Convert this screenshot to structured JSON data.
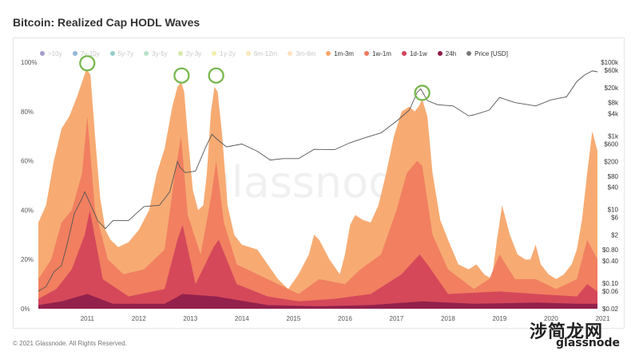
{
  "chart_data": {
    "type": "area",
    "title": "Bitcoin: Realized Cap HODL Waves",
    "xlabel": "",
    "ylabel": "",
    "y_left_ticks": [
      "0%",
      "20%",
      "40%",
      "60%",
      "80%",
      "100%"
    ],
    "y_left_range": [
      0,
      100
    ],
    "y_right_ticks": [
      "$0.02",
      "$0.06",
      "$0.10",
      "$0.40",
      "$0.80",
      "$2",
      "$6",
      "$10",
      "$40",
      "$80",
      "$200",
      "$600",
      "$1k",
      "$4k",
      "$8k",
      "$20k",
      "$60k",
      "$100k"
    ],
    "y_right_range": [
      0.02,
      100000
    ],
    "x_ticks": [
      "2011",
      "2012",
      "2013",
      "2014",
      "2015",
      "2016",
      "2017",
      "2018",
      "2019",
      "2020",
      "2021"
    ],
    "x_range": [
      2010.55,
      2021.4
    ],
    "legend": [
      {
        "label": ">10y",
        "color": "#5b4aa3",
        "active": false
      },
      {
        "label": "7y-10y",
        "color": "#3a78b5",
        "active": false
      },
      {
        "label": "5y-7y",
        "color": "#3aa39a",
        "active": false
      },
      {
        "label": "3y-5y",
        "color": "#7dcb9b",
        "active": false
      },
      {
        "label": "2y-3y",
        "color": "#b7d96b",
        "active": false
      },
      {
        "label": "1y-2y",
        "color": "#e8e46a",
        "active": false
      },
      {
        "label": "6m-12m",
        "color": "#f6d782",
        "active": false
      },
      {
        "label": "3m-6m",
        "color": "#f9c88a",
        "active": false
      },
      {
        "label": "1m-3m",
        "color": "#f7a66c",
        "active": true
      },
      {
        "label": "1w-1m",
        "color": "#ef7a5e",
        "active": true
      },
      {
        "label": "1d-1w",
        "color": "#d2435a",
        "active": true
      },
      {
        "label": "24h",
        "color": "#8c1d4a",
        "active": true
      },
      {
        "label": "Price [USD]",
        "color": "#7a7a7a",
        "active": true
      }
    ],
    "series": [
      {
        "name": "1m-3m",
        "color": "#f7a66c",
        "x": [
          2010.55,
          2010.7,
          2010.85,
          2011.0,
          2011.15,
          2011.3,
          2011.4,
          2011.48,
          2011.56,
          2011.65,
          2011.75,
          2011.85,
          2011.95,
          2012.1,
          2012.3,
          2012.5,
          2012.7,
          2012.85,
          2013.0,
          2013.15,
          2013.25,
          2013.32,
          2013.38,
          2013.45,
          2013.55,
          2013.65,
          2013.75,
          2013.82,
          2013.9,
          2013.97,
          2014.03,
          2014.12,
          2014.22,
          2014.35,
          2014.5,
          2014.65,
          2014.8,
          2015.0,
          2015.2,
          2015.4,
          2015.6,
          2015.8,
          2015.9,
          2016.0,
          2016.2,
          2016.4,
          2016.5,
          2016.6,
          2016.7,
          2016.85,
          2017.0,
          2017.15,
          2017.3,
          2017.45,
          2017.6,
          2017.75,
          2017.85,
          2017.93,
          2018.0,
          2018.1,
          2018.2,
          2018.35,
          2018.5,
          2018.7,
          2018.9,
          2019.05,
          2019.2,
          2019.35,
          2019.45,
          2019.55,
          2019.7,
          2019.85,
          2020.0,
          2020.1,
          2020.2,
          2020.3,
          2020.45,
          2020.6,
          2020.75,
          2020.9,
          2021.0,
          2021.1,
          2021.2,
          2021.3,
          2021.4
        ],
        "values": [
          35,
          42,
          60,
          73,
          78,
          86,
          92,
          97,
          95,
          70,
          45,
          32,
          28,
          25,
          27,
          32,
          40,
          55,
          65,
          82,
          90,
          92,
          88,
          70,
          48,
          40,
          42,
          55,
          80,
          90,
          88,
          70,
          42,
          30,
          26,
          25,
          24,
          18,
          12,
          8,
          14,
          22,
          30,
          28,
          20,
          14,
          22,
          34,
          38,
          36,
          35,
          42,
          55,
          70,
          80,
          82,
          80,
          82,
          85,
          78,
          55,
          36,
          28,
          18,
          16,
          18,
          14,
          12,
          28,
          42,
          30,
          22,
          20,
          20,
          26,
          18,
          14,
          12,
          14,
          18,
          24,
          36,
          55,
          72,
          64
        ]
      },
      {
        "name": "1w-1m",
        "color": "#ef7a5e",
        "x": [
          2010.55,
          2010.8,
          2011.0,
          2011.2,
          2011.4,
          2011.5,
          2011.65,
          2011.9,
          2012.2,
          2012.6,
          2013.0,
          2013.2,
          2013.32,
          2013.45,
          2013.7,
          2013.9,
          2014.0,
          2014.15,
          2014.4,
          2014.8,
          2015.2,
          2015.6,
          2016.0,
          2016.5,
          2016.8,
          2017.2,
          2017.5,
          2017.7,
          2017.9,
          2018.0,
          2018.2,
          2018.5,
          2019.0,
          2019.3,
          2019.5,
          2019.8,
          2020.2,
          2020.6,
          2021.0,
          2021.2,
          2021.4
        ],
        "values": [
          12,
          20,
          35,
          40,
          55,
          78,
          40,
          20,
          14,
          16,
          24,
          55,
          70,
          38,
          22,
          45,
          60,
          35,
          18,
          14,
          10,
          6,
          12,
          10,
          16,
          22,
          40,
          55,
          60,
          58,
          30,
          16,
          8,
          12,
          22,
          12,
          12,
          8,
          12,
          28,
          20
        ]
      },
      {
        "name": "1d-1w",
        "color": "#d2435a",
        "x": [
          2010.55,
          2010.9,
          2011.2,
          2011.45,
          2011.55,
          2011.8,
          2012.3,
          2013.0,
          2013.25,
          2013.35,
          2013.6,
          2013.95,
          2014.05,
          2014.4,
          2015.0,
          2015.6,
          2016.3,
          2017.0,
          2017.6,
          2017.95,
          2018.1,
          2018.5,
          2019.5,
          2020.2,
          2021.0,
          2021.2,
          2021.4
        ],
        "values": [
          4,
          8,
          16,
          30,
          40,
          12,
          5,
          8,
          28,
          34,
          10,
          25,
          28,
          10,
          5,
          3,
          4,
          6,
          14,
          22,
          18,
          6,
          7,
          6,
          5,
          10,
          7
        ]
      },
      {
        "name": "24h",
        "color": "#8c1d4a",
        "x": [
          2010.55,
          2011.0,
          2011.5,
          2012.0,
          2013.0,
          2013.35,
          2014.0,
          2015.0,
          2016.0,
          2017.0,
          2018.0,
          2019.0,
          2020.2,
          2021.0,
          2021.4
        ],
        "values": [
          1.5,
          3,
          6,
          2,
          2,
          6,
          5,
          1.5,
          1,
          1.5,
          3,
          2,
          2.5,
          2,
          2
        ]
      }
    ],
    "price": {
      "name": "Price [USD]",
      "color": "#6e6e6e",
      "x": [
        2010.55,
        2010.7,
        2010.85,
        2011.0,
        2011.1,
        2011.25,
        2011.4,
        2011.45,
        2011.55,
        2011.7,
        2011.85,
        2012.0,
        2012.3,
        2012.6,
        2012.9,
        2013.1,
        2013.25,
        2013.3,
        2013.4,
        2013.6,
        2013.8,
        2013.92,
        2014.0,
        2014.2,
        2014.5,
        2014.8,
        2015.05,
        2015.3,
        2015.6,
        2015.9,
        2016.3,
        2016.6,
        2016.9,
        2017.2,
        2017.5,
        2017.75,
        2017.9,
        2017.97,
        2018.1,
        2018.3,
        2018.6,
        2018.9,
        2019.0,
        2019.3,
        2019.5,
        2019.8,
        2020.0,
        2020.2,
        2020.5,
        2020.8,
        2021.0,
        2021.15,
        2021.3,
        2021.4
      ],
      "values": [
        0.06,
        0.08,
        0.2,
        0.3,
        1,
        8,
        20,
        30,
        15,
        5,
        3,
        5,
        5,
        12,
        13,
        30,
        200,
        140,
        100,
        110,
        500,
        1100,
        850,
        500,
        600,
        380,
        220,
        240,
        240,
        430,
        420,
        650,
        900,
        1200,
        2500,
        5000,
        15000,
        19000,
        9000,
        7000,
        6500,
        3500,
        3700,
        5000,
        11000,
        8000,
        7200,
        6500,
        9500,
        11500,
        30000,
        45000,
        58000,
        55000
      ]
    }
  }
}
